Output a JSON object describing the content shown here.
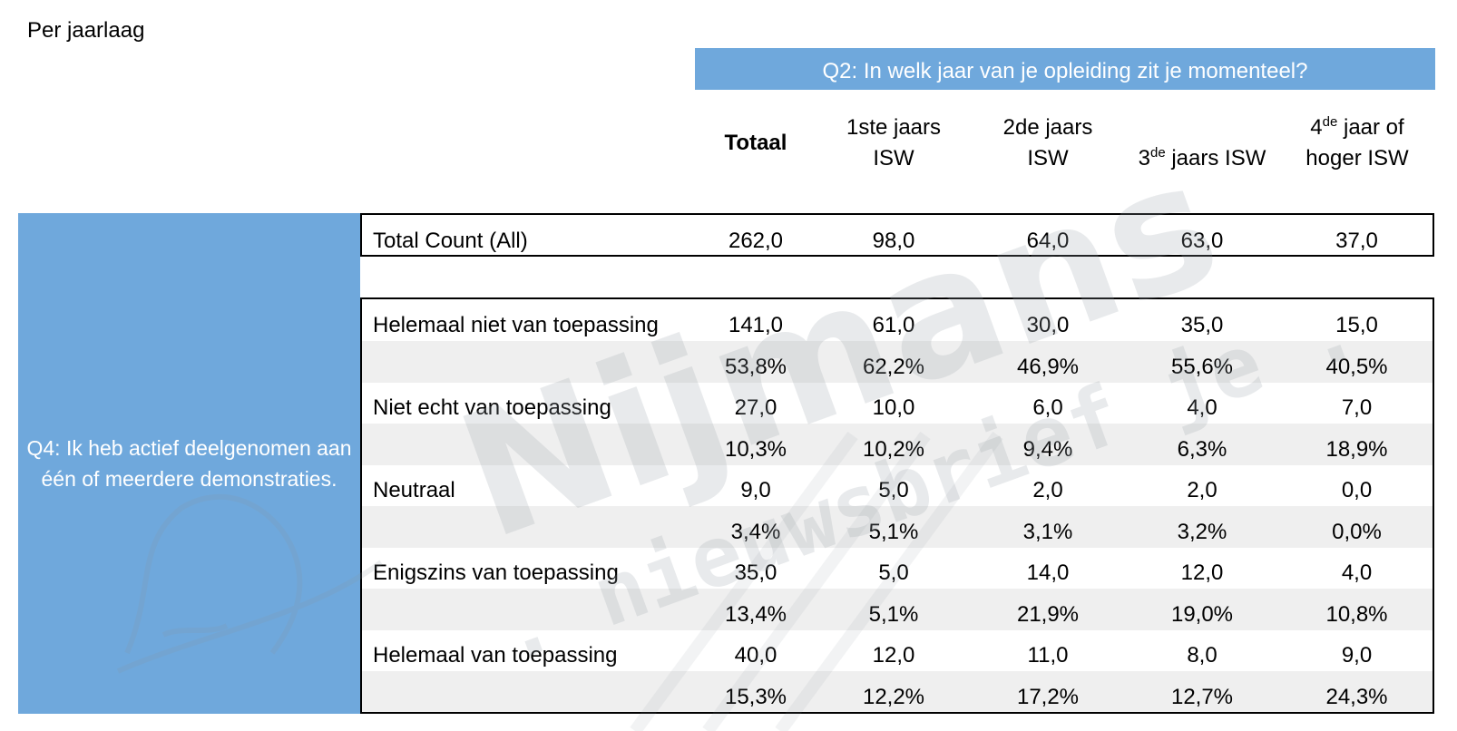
{
  "page_title": "Per jaarlaag",
  "column_group_header": "Q2: In welk jaar van je opleiding zit je momenteel?",
  "columns": {
    "c0": "Totaal",
    "c1_line1": "1ste jaars",
    "c1_line2": "ISW",
    "c2_line1": "2de jaars",
    "c2_line2": "ISW",
    "c3_prefix": "3",
    "c3_sup": "de",
    "c3_rest": " jaars ISW",
    "c4_prefix": "4",
    "c4_sup": "de",
    "c4_rest": " jaar of",
    "c4_line2": "hoger ISW"
  },
  "row_group_header": "Q4: Ik heb actief deelgenomen aan één of meerdere demonstraties.",
  "total_row": {
    "label": "Total Count (All)",
    "values": [
      "262,0",
      "98,0",
      "64,0",
      "63,0",
      "37,0"
    ]
  },
  "rows": [
    {
      "label": "Helemaal niet van toepassing",
      "counts": [
        "141,0",
        "61,0",
        "30,0",
        "35,0",
        "15,0"
      ],
      "percents": [
        "53,8%",
        "62,2%",
        "46,9%",
        "55,6%",
        "40,5%"
      ]
    },
    {
      "label": "Niet echt van toepassing",
      "counts": [
        "27,0",
        "10,0",
        "6,0",
        "4,0",
        "7,0"
      ],
      "percents": [
        "10,3%",
        "10,2%",
        "9,4%",
        "6,3%",
        "18,9%"
      ]
    },
    {
      "label": "Neutraal",
      "counts": [
        "9,0",
        "5,0",
        "2,0",
        "2,0",
        "0,0"
      ],
      "percents": [
        "3,4%",
        "5,1%",
        "3,1%",
        "3,2%",
        "0,0%"
      ]
    },
    {
      "label": "Enigszins van toepassing",
      "counts": [
        "35,0",
        "5,0",
        "14,0",
        "12,0",
        "4,0"
      ],
      "percents": [
        "13,4%",
        "5,1%",
        "21,9%",
        "19,0%",
        "10,8%"
      ]
    },
    {
      "label": "Helemaal van toepassing",
      "counts": [
        "40,0",
        "12,0",
        "11,0",
        "8,0",
        "9,0"
      ],
      "percents": [
        "15,3%",
        "12,2%",
        "17,2%",
        "12,7%",
        "24,3%"
      ]
    }
  ],
  "watermark": {
    "line1": "Nijmans",
    "line2": ". nieuwsbrief je ."
  },
  "colors": {
    "header_blue": "#6fa8dc",
    "row_shade": "#efefef",
    "watermark_gray": "#9aa3ab"
  }
}
